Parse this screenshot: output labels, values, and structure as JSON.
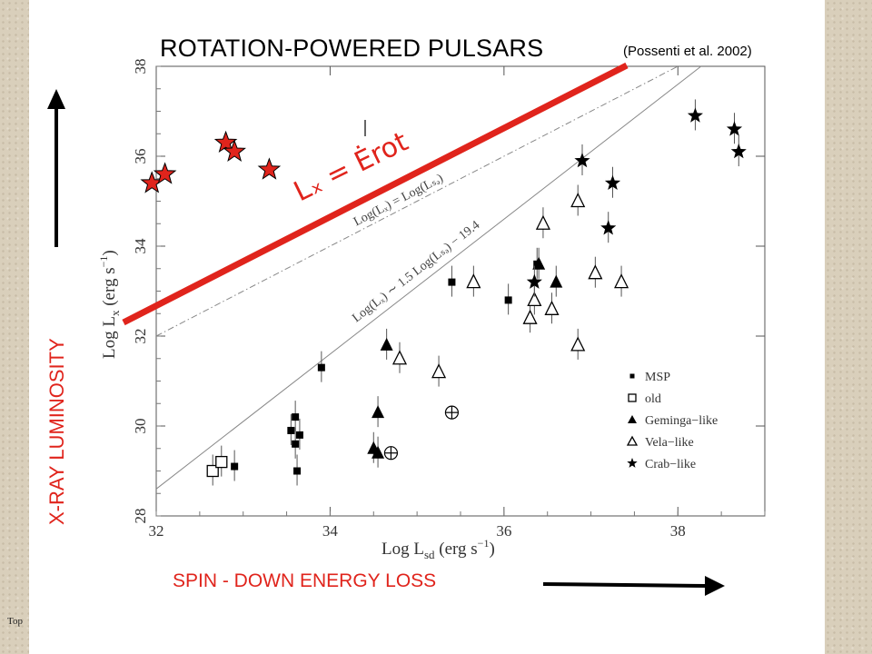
{
  "slide": {
    "title": "ROTATION-POWERED PULSARS",
    "citation": "(Possenti et al. 2002)",
    "x_arrow_label": "SPIN - DOWN ENERGY LOSS",
    "y_arrow_label": "X-RAY LUMINOSITY",
    "corner_text": "Top",
    "red_line_label": "Lₓ = Ėrot",
    "colors": {
      "red": "#e0241c",
      "black": "#000000",
      "frame": "#d9cfbb"
    }
  },
  "chart_data": {
    "type": "scatter",
    "xlabel": "Log L",
    "xlabel_sub": "sd",
    "xlabel_unit": "(erg s",
    "xlabel_tail": "−1",
    "xlabel_close": ")",
    "ylabel": "Log L",
    "ylabel_sub": "x",
    "ylabel_unit": "(erg s",
    "xlim": [
      32,
      39
    ],
    "ylim": [
      28,
      38
    ],
    "xticks": [
      "32",
      "34",
      "36",
      "38"
    ],
    "yticks": [
      "28",
      "30",
      "32",
      "34",
      "36",
      "38"
    ],
    "lines": [
      {
        "label": "Log(Lₓ) = Log(Lₛₔ)",
        "slope": 1,
        "intercept": 0,
        "style": "dashdot"
      },
      {
        "label": "Log(Lₓ) ∼ 1.5 Log(Lₛₔ) − 19.4",
        "slope": 1.5,
        "intercept": -19.4,
        "style": "solid"
      }
    ],
    "legend": {
      "position": "bottom-right",
      "entries": [
        "MSP",
        "old",
        "Geminga−like",
        "Vela−like",
        "Crab−like"
      ]
    },
    "series": [
      {
        "name": "MSP",
        "marker": "filled-square",
        "points": [
          [
            32.9,
            29.1
          ],
          [
            33.55,
            29.9
          ],
          [
            33.6,
            30.2
          ],
          [
            33.6,
            29.6
          ],
          [
            33.65,
            29.8
          ],
          [
            33.62,
            29.0
          ],
          [
            33.9,
            31.3
          ],
          [
            35.4,
            33.2
          ],
          [
            36.05,
            32.8
          ],
          [
            36.38,
            33.6
          ]
        ]
      },
      {
        "name": "old",
        "marker": "open-square",
        "points": [
          [
            32.65,
            29.0
          ],
          [
            32.75,
            29.2
          ]
        ]
      },
      {
        "name": "Geminga−like",
        "marker": "filled-triangle",
        "points": [
          [
            34.5,
            29.5
          ],
          [
            34.55,
            29.4
          ],
          [
            34.55,
            30.3
          ],
          [
            34.65,
            31.8
          ],
          [
            36.4,
            33.6
          ],
          [
            36.6,
            33.2
          ]
        ]
      },
      {
        "name": "Vela−like",
        "marker": "open-triangle",
        "points": [
          [
            34.8,
            31.5
          ],
          [
            35.25,
            31.2
          ],
          [
            35.65,
            33.2
          ],
          [
            36.3,
            32.4
          ],
          [
            36.35,
            32.8
          ],
          [
            36.45,
            34.5
          ],
          [
            36.55,
            32.6
          ],
          [
            36.85,
            31.8
          ],
          [
            36.85,
            35.0
          ],
          [
            37.05,
            33.4
          ],
          [
            37.35,
            33.2
          ]
        ]
      },
      {
        "name": "Crab−like",
        "marker": "filled-star",
        "points": [
          [
            36.35,
            33.2
          ],
          [
            36.9,
            35.9
          ],
          [
            37.25,
            35.4
          ],
          [
            37.2,
            34.4
          ],
          [
            38.2,
            36.9
          ],
          [
            38.65,
            36.6
          ],
          [
            38.7,
            36.1
          ]
        ]
      },
      {
        "name": "",
        "marker": "circled-plus",
        "points": [
          [
            35.4,
            30.3
          ],
          [
            34.7,
            29.4
          ]
        ]
      },
      {
        "name": "",
        "marker": "red-star",
        "points": [
          [
            31.95,
            35.4
          ],
          [
            32.1,
            35.6
          ],
          [
            32.8,
            36.3
          ],
          [
            32.9,
            36.1
          ],
          [
            33.3,
            35.7
          ]
        ]
      }
    ]
  }
}
